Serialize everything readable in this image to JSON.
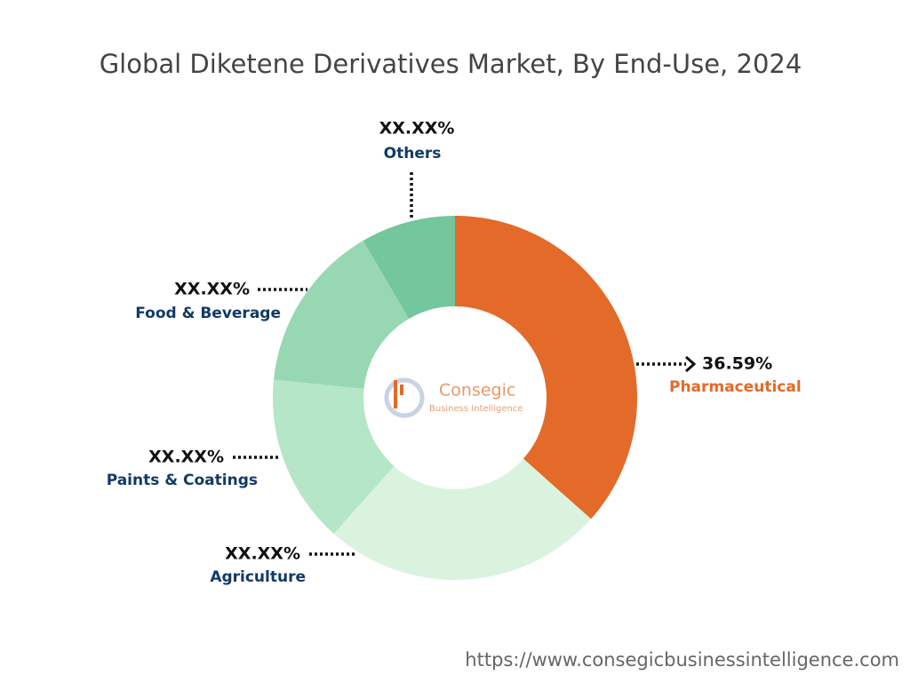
{
  "chart_data": {
    "type": "donut",
    "title": "Global Diketene Derivatives Market, By End-Use, 2024",
    "categories": [
      "Pharmaceutical",
      "Agriculture",
      "Paints & Coatings",
      "Food & Beverage",
      "Others"
    ],
    "values": [
      36.59,
      25,
      15,
      15,
      8.41
    ],
    "value_labels": [
      "36.59%",
      "XX.XX%",
      "XX.XX%",
      "XX.XX%",
      "XX.XX%"
    ],
    "colors": [
      "#e36a28",
      "#daf3df",
      "#b4e6c7",
      "#97d8b2",
      "#74c69d"
    ]
  },
  "logo": {
    "name": "Consegic",
    "tagline": "Business Intelligence"
  },
  "source_url": "https://www.consegicbusinessintelligence.com"
}
